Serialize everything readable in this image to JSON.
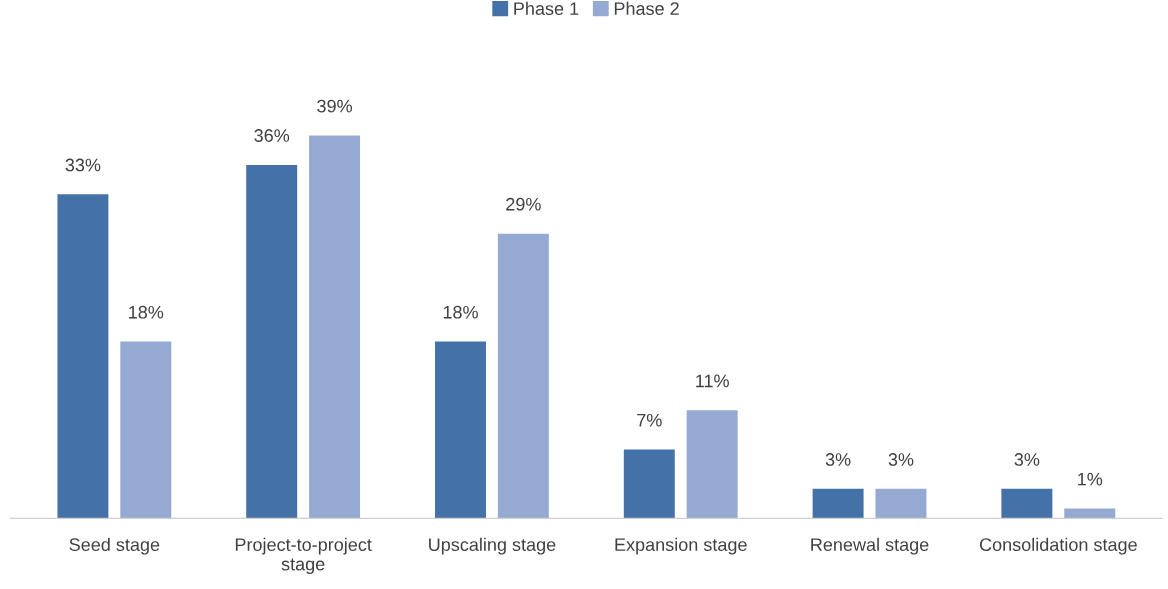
{
  "chart_data": {
    "type": "bar",
    "categories": [
      "Seed stage",
      "Project-to-project\nstage",
      "Upscaling stage",
      "Expansion stage",
      "Renewal stage",
      "Consolidation stage"
    ],
    "series": [
      {
        "name": "Phase 1",
        "color": "#4472a8",
        "values": [
          33,
          36,
          18,
          7,
          3,
          3
        ],
        "value_labels": [
          "33%",
          "36%",
          "18%",
          "7%",
          "3%",
          "3%"
        ]
      },
      {
        "name": "Phase 2",
        "color": "#95aad3",
        "values": [
          18,
          39,
          29,
          11,
          3,
          1
        ],
        "value_labels": [
          "18%",
          "39%",
          "29%",
          "11%",
          "3%",
          "1%"
        ]
      }
    ],
    "legend": "top",
    "grid": false
  }
}
